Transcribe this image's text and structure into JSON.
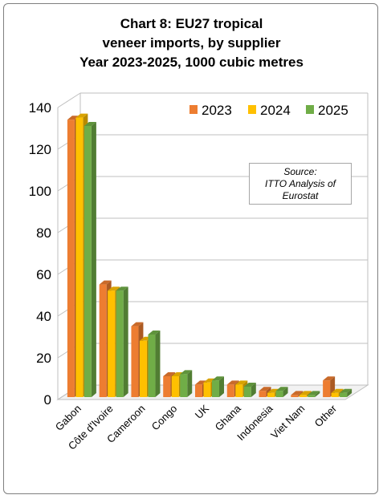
{
  "chart_data": {
    "type": "bar",
    "title_lines": [
      "Chart 8: EU27 tropical",
      "veneer imports, by supplier",
      "Year 2023-2025, 1000 cubic metres"
    ],
    "xlabel": "",
    "ylabel": "",
    "ylim": [
      0,
      140
    ],
    "yticks": [
      0,
      20,
      40,
      60,
      80,
      100,
      120,
      140
    ],
    "categories": [
      "Gabon",
      "Côte d'Ivoire",
      "Cameroon",
      "Congo",
      "UK",
      "Ghana",
      "Indonesia",
      "Viet Nam",
      "Other"
    ],
    "series": [
      {
        "name": "2023",
        "values": [
          133,
          54,
          34,
          10,
          6,
          6,
          3,
          1,
          8
        ]
      },
      {
        "name": "2024",
        "values": [
          134,
          51,
          27,
          10,
          7,
          6,
          2,
          1,
          2
        ]
      },
      {
        "name": "2025",
        "values": [
          130,
          51,
          30,
          11,
          8,
          5,
          3,
          1,
          2
        ]
      }
    ],
    "colors": {
      "2023": "#ED7D31",
      "2024": "#FFC000",
      "2025": "#70AD47"
    },
    "grid": true,
    "legend_position": "top-right",
    "annotation": {
      "lines": [
        "Source:",
        "ITTO Analysis of",
        "Eurostat"
      ]
    }
  }
}
